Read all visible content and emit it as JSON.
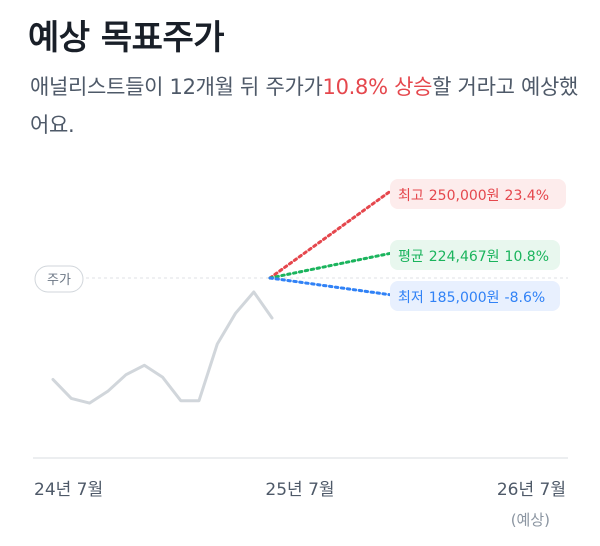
{
  "header": {
    "title": "예상 목표주가",
    "subtitle_before": "애널리스트들이 12개월 뒤 주가가",
    "subtitle_highlight": "10.8% 상승",
    "subtitle_after": "할 거라고 예상했어요."
  },
  "colors": {
    "high": "#e5474d",
    "high_bg": "#fdecec",
    "avg": "#1bb45d",
    "avg_bg": "#e8f7ee",
    "low": "#3182f6",
    "low_bg": "#e8f0fe",
    "history_line": "#d1d6db",
    "axis": "#e5e8eb"
  },
  "chart_data": {
    "type": "line",
    "price_label": "주가",
    "x_tick_labels": [
      "24년 7월",
      "25년 7월",
      "26년 7월"
    ],
    "x_tick_sublabels": [
      "",
      "",
      "(예상)"
    ],
    "history": {
      "name": "주가",
      "x": [
        0,
        1,
        2,
        3,
        4,
        5,
        6,
        7,
        8,
        9,
        10,
        11,
        12
      ],
      "y": [
        177000,
        169000,
        167000,
        172000,
        179000,
        183000,
        178000,
        168000,
        168000,
        192000,
        205000,
        214000,
        203000
      ]
    },
    "projections": [
      {
        "key": "high",
        "label": "최고",
        "price": "250,000원",
        "change": "23.4%",
        "value": 250000
      },
      {
        "key": "avg",
        "label": "평균",
        "price": "224,467원",
        "change": "10.8%",
        "value": 224467
      },
      {
        "key": "low",
        "label": "최저",
        "price": "185,000원",
        "change": "-8.6%",
        "value": 185000
      }
    ]
  }
}
